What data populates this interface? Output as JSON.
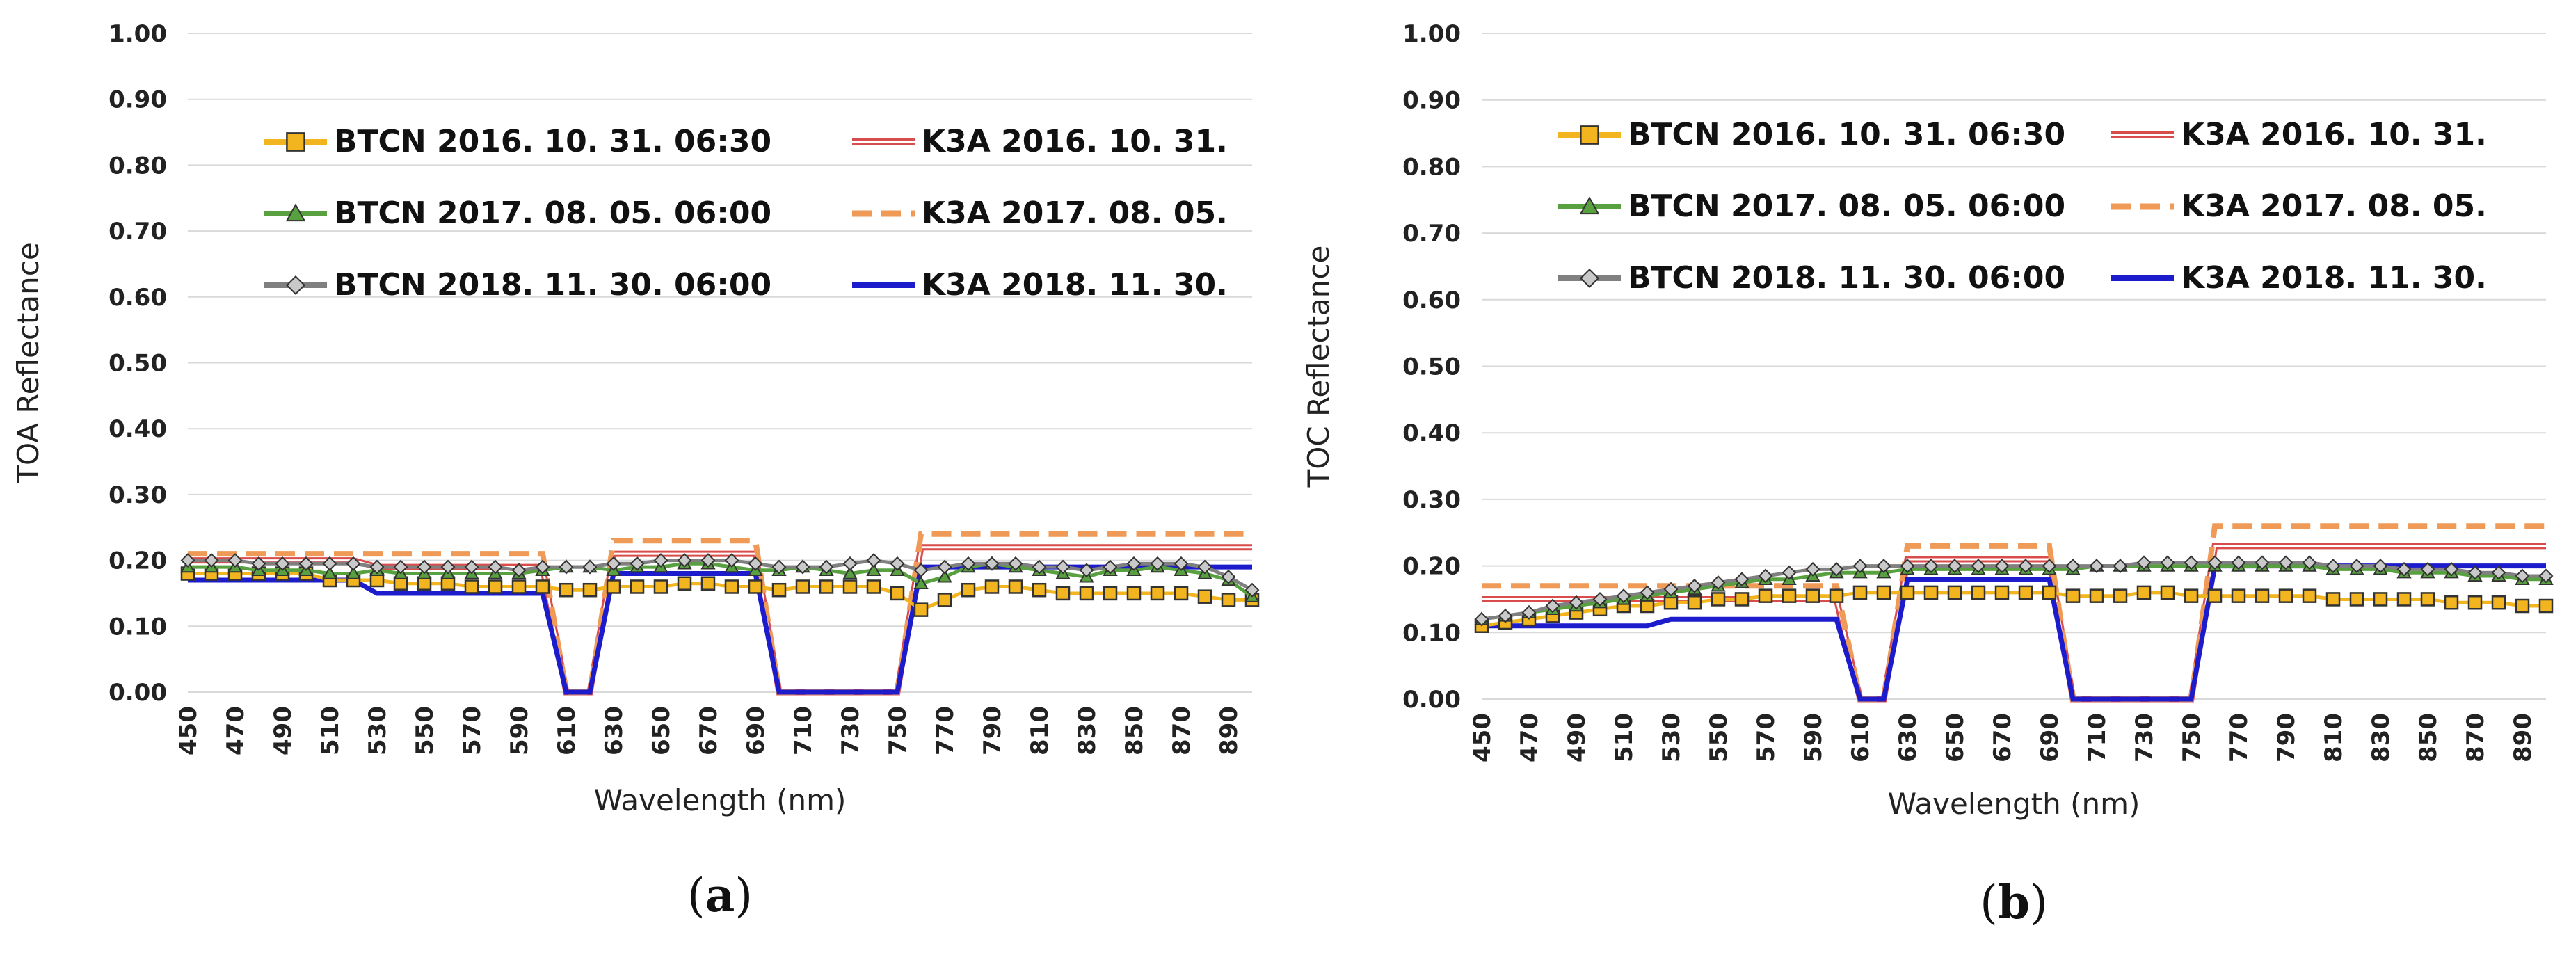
{
  "colors": {
    "btcn_2016": "#f2b51f",
    "btcn_2017": "#59a040",
    "btcn_2018": "#808080",
    "k3a_2016": "#d94c4c",
    "k3a_2017": "#ef9a57",
    "k3a_2018": "#1c1ccc",
    "grid": "#d9d9d9",
    "marker_2016": "#f2b51f"
  },
  "chart_data": [
    {
      "type": "line",
      "panel": "(a)",
      "caption_letter": "a",
      "xlabel": "Wavelength (nm)",
      "ylabel": "TOA Reflectance",
      "ylim": [
        0,
        1
      ],
      "yticks": [
        "0.00",
        "0.10",
        "0.20",
        "0.30",
        "0.40",
        "0.50",
        "0.60",
        "0.70",
        "0.80",
        "0.90",
        "1.00"
      ],
      "xticks": [
        "450",
        "470",
        "490",
        "510",
        "530",
        "550",
        "570",
        "590",
        "610",
        "630",
        "650",
        "670",
        "690",
        "710",
        "730",
        "750",
        "770",
        "790",
        "810",
        "830",
        "850",
        "870",
        "890"
      ],
      "grid": true,
      "legend_position": "top-left",
      "x": [
        450,
        460,
        470,
        480,
        490,
        500,
        510,
        520,
        530,
        540,
        550,
        560,
        570,
        580,
        590,
        600,
        610,
        620,
        630,
        640,
        650,
        660,
        670,
        680,
        690,
        700,
        710,
        720,
        730,
        740,
        750,
        760,
        770,
        780,
        790,
        800,
        810,
        820,
        830,
        840,
        850,
        860,
        870,
        880,
        890,
        900
      ],
      "series": [
        {
          "name": "BTCN 2016. 10. 31. 06:30",
          "color_key": "btcn_2016",
          "marker": "square",
          "values": [
            0.18,
            0.18,
            0.18,
            0.18,
            0.18,
            0.18,
            0.17,
            0.17,
            0.17,
            0.165,
            0.165,
            0.165,
            0.16,
            0.16,
            0.16,
            0.16,
            0.155,
            0.155,
            0.16,
            0.16,
            0.16,
            0.165,
            0.165,
            0.16,
            0.16,
            0.155,
            0.16,
            0.16,
            0.16,
            0.16,
            0.15,
            0.125,
            0.14,
            0.155,
            0.16,
            0.16,
            0.155,
            0.15,
            0.15,
            0.15,
            0.15,
            0.15,
            0.15,
            0.145,
            0.14,
            0.14
          ]
        },
        {
          "name": "BTCN 2017. 08. 05. 06:00",
          "color_key": "btcn_2017",
          "marker": "triangle",
          "values": [
            0.19,
            0.19,
            0.19,
            0.185,
            0.185,
            0.185,
            0.18,
            0.18,
            0.185,
            0.18,
            0.18,
            0.18,
            0.18,
            0.18,
            0.18,
            0.185,
            0.19,
            0.19,
            0.185,
            0.19,
            0.19,
            0.195,
            0.195,
            0.19,
            0.185,
            0.185,
            0.19,
            0.185,
            0.18,
            0.185,
            0.185,
            0.165,
            0.175,
            0.19,
            0.195,
            0.19,
            0.185,
            0.18,
            0.175,
            0.185,
            0.185,
            0.19,
            0.185,
            0.18,
            0.17,
            0.145
          ]
        },
        {
          "name": "BTCN 2018. 11. 30. 06:00",
          "color_key": "btcn_2018",
          "marker": "diamond",
          "values": [
            0.2,
            0.2,
            0.2,
            0.195,
            0.195,
            0.195,
            0.195,
            0.195,
            0.19,
            0.19,
            0.19,
            0.19,
            0.19,
            0.19,
            0.185,
            0.19,
            0.19,
            0.19,
            0.195,
            0.195,
            0.2,
            0.2,
            0.2,
            0.2,
            0.195,
            0.19,
            0.19,
            0.19,
            0.195,
            0.2,
            0.195,
            0.185,
            0.19,
            0.195,
            0.195,
            0.195,
            0.19,
            0.19,
            0.185,
            0.19,
            0.195,
            0.195,
            0.195,
            0.19,
            0.175,
            0.155
          ]
        },
        {
          "name": "K3A 2016. 10. 31.",
          "color_key": "k3a_2016",
          "line": "double",
          "values": [
            0.2,
            0.2,
            0.2,
            0.2,
            0.2,
            0.2,
            0.2,
            0.2,
            0.19,
            0.19,
            0.19,
            0.19,
            0.19,
            0.19,
            0.19,
            0.19,
            0,
            0,
            0.21,
            0.21,
            0.21,
            0.21,
            0.21,
            0.21,
            0.21,
            0,
            0,
            0,
            0,
            0,
            0,
            0.22,
            0.22,
            0.22,
            0.22,
            0.22,
            0.22,
            0.22,
            0.22,
            0.22,
            0.22,
            0.22,
            0.22,
            0.22,
            0.22,
            0.22
          ]
        },
        {
          "name": "K3A 2017. 08. 05.",
          "color_key": "k3a_2017",
          "line": "dashed",
          "values": [
            0.21,
            0.21,
            0.21,
            0.21,
            0.21,
            0.21,
            0.21,
            0.21,
            0.21,
            0.21,
            0.21,
            0.21,
            0.21,
            0.21,
            0.21,
            0.21,
            0,
            0,
            0.23,
            0.23,
            0.23,
            0.23,
            0.23,
            0.23,
            0.23,
            0,
            0,
            0,
            0,
            0,
            0,
            0.24,
            0.24,
            0.24,
            0.24,
            0.24,
            0.24,
            0.24,
            0.24,
            0.24,
            0.24,
            0.24,
            0.24,
            0.24,
            0.24,
            0.24
          ]
        },
        {
          "name": "K3A 2018. 11. 30.",
          "color_key": "k3a_2018",
          "line": "solid",
          "values": [
            0.17,
            0.17,
            0.17,
            0.17,
            0.17,
            0.17,
            0.17,
            0.17,
            0.15,
            0.15,
            0.15,
            0.15,
            0.15,
            0.15,
            0.15,
            0.15,
            0,
            0,
            0.18,
            0.18,
            0.18,
            0.18,
            0.18,
            0.18,
            0.18,
            0,
            0,
            0,
            0,
            0,
            0,
            0.19,
            0.19,
            0.19,
            0.19,
            0.19,
            0.19,
            0.19,
            0.19,
            0.19,
            0.19,
            0.19,
            0.19,
            0.19,
            0.19,
            0.19
          ]
        }
      ]
    },
    {
      "type": "line",
      "panel": "(b)",
      "caption_letter": "b",
      "xlabel": "Wavelength (nm)",
      "ylabel": "TOC Reflectance",
      "ylim": [
        0,
        1
      ],
      "yticks": [
        "0.00",
        "0.10",
        "0.20",
        "0.30",
        "0.40",
        "0.50",
        "0.60",
        "0.70",
        "0.80",
        "0.90",
        "1.00"
      ],
      "xticks": [
        "450",
        "470",
        "490",
        "510",
        "530",
        "550",
        "570",
        "590",
        "610",
        "630",
        "650",
        "670",
        "690",
        "710",
        "730",
        "750",
        "770",
        "790",
        "810",
        "830",
        "850",
        "870",
        "890"
      ],
      "grid": true,
      "legend_position": "top-left",
      "x": [
        450,
        460,
        470,
        480,
        490,
        500,
        510,
        520,
        530,
        540,
        550,
        560,
        570,
        580,
        590,
        600,
        610,
        620,
        630,
        640,
        650,
        660,
        670,
        680,
        690,
        700,
        710,
        720,
        730,
        740,
        750,
        760,
        770,
        780,
        790,
        800,
        810,
        820,
        830,
        840,
        850,
        860,
        870,
        880,
        890,
        900
      ],
      "series": [
        {
          "name": "BTCN 2016. 10. 31. 06:30",
          "color_key": "btcn_2016",
          "marker": "square",
          "values": [
            0.11,
            0.115,
            0.12,
            0.125,
            0.13,
            0.135,
            0.14,
            0.14,
            0.145,
            0.145,
            0.15,
            0.15,
            0.155,
            0.155,
            0.155,
            0.155,
            0.16,
            0.16,
            0.16,
            0.16,
            0.16,
            0.16,
            0.16,
            0.16,
            0.16,
            0.155,
            0.155,
            0.155,
            0.16,
            0.16,
            0.155,
            0.155,
            0.155,
            0.155,
            0.155,
            0.155,
            0.15,
            0.15,
            0.15,
            0.15,
            0.15,
            0.145,
            0.145,
            0.145,
            0.14,
            0.14
          ]
        },
        {
          "name": "BTCN 2017. 08. 05. 06:00",
          "color_key": "btcn_2017",
          "marker": "triangle",
          "values": [
            0.12,
            0.125,
            0.13,
            0.135,
            0.14,
            0.145,
            0.15,
            0.155,
            0.16,
            0.165,
            0.17,
            0.175,
            0.18,
            0.18,
            0.185,
            0.19,
            0.19,
            0.19,
            0.195,
            0.195,
            0.195,
            0.195,
            0.195,
            0.195,
            0.195,
            0.195,
            0.2,
            0.2,
            0.2,
            0.2,
            0.2,
            0.2,
            0.2,
            0.2,
            0.2,
            0.2,
            0.195,
            0.195,
            0.195,
            0.19,
            0.19,
            0.19,
            0.185,
            0.185,
            0.18,
            0.18
          ]
        },
        {
          "name": "BTCN 2018. 11. 30. 06:00",
          "color_key": "btcn_2018",
          "marker": "diamond",
          "values": [
            0.12,
            0.125,
            0.13,
            0.14,
            0.145,
            0.15,
            0.155,
            0.16,
            0.165,
            0.17,
            0.175,
            0.18,
            0.185,
            0.19,
            0.195,
            0.195,
            0.2,
            0.2,
            0.2,
            0.2,
            0.2,
            0.2,
            0.2,
            0.2,
            0.2,
            0.2,
            0.2,
            0.2,
            0.205,
            0.205,
            0.205,
            0.205,
            0.205,
            0.205,
            0.205,
            0.205,
            0.2,
            0.2,
            0.2,
            0.195,
            0.195,
            0.195,
            0.19,
            0.19,
            0.185,
            0.185
          ]
        },
        {
          "name": "K3A 2016. 10. 31.",
          "color_key": "k3a_2016",
          "line": "double",
          "values": [
            0.15,
            0.15,
            0.15,
            0.15,
            0.15,
            0.15,
            0.15,
            0.15,
            0.15,
            0.15,
            0.15,
            0.15,
            0.15,
            0.15,
            0.15,
            0.15,
            0,
            0,
            0.21,
            0.21,
            0.21,
            0.21,
            0.21,
            0.21,
            0.21,
            0,
            0,
            0,
            0,
            0,
            0,
            0.23,
            0.23,
            0.23,
            0.23,
            0.23,
            0.23,
            0.23,
            0.23,
            0.23,
            0.23,
            0.23,
            0.23,
            0.23,
            0.23,
            0.23
          ]
        },
        {
          "name": "K3A 2017. 08. 05.",
          "color_key": "k3a_2017",
          "line": "dashed",
          "values": [
            0.17,
            0.17,
            0.17,
            0.17,
            0.17,
            0.17,
            0.17,
            0.17,
            0.17,
            0.17,
            0.17,
            0.17,
            0.17,
            0.17,
            0.17,
            0.17,
            0,
            0,
            0.23,
            0.23,
            0.23,
            0.23,
            0.23,
            0.23,
            0.23,
            0,
            0,
            0,
            0,
            0,
            0,
            0.26,
            0.26,
            0.26,
            0.26,
            0.26,
            0.26,
            0.26,
            0.26,
            0.26,
            0.26,
            0.26,
            0.26,
            0.26,
            0.26,
            0.26
          ]
        },
        {
          "name": "K3A 2018. 11. 30.",
          "color_key": "k3a_2018",
          "line": "solid",
          "values": [
            0.11,
            0.11,
            0.11,
            0.11,
            0.11,
            0.11,
            0.11,
            0.11,
            0.12,
            0.12,
            0.12,
            0.12,
            0.12,
            0.12,
            0.12,
            0.12,
            0,
            0,
            0.18,
            0.18,
            0.18,
            0.18,
            0.18,
            0.18,
            0.18,
            0,
            0,
            0,
            0,
            0,
            0,
            0.2,
            0.2,
            0.2,
            0.2,
            0.2,
            0.2,
            0.2,
            0.2,
            0.2,
            0.2,
            0.2,
            0.2,
            0.2,
            0.2,
            0.2
          ]
        }
      ]
    }
  ]
}
